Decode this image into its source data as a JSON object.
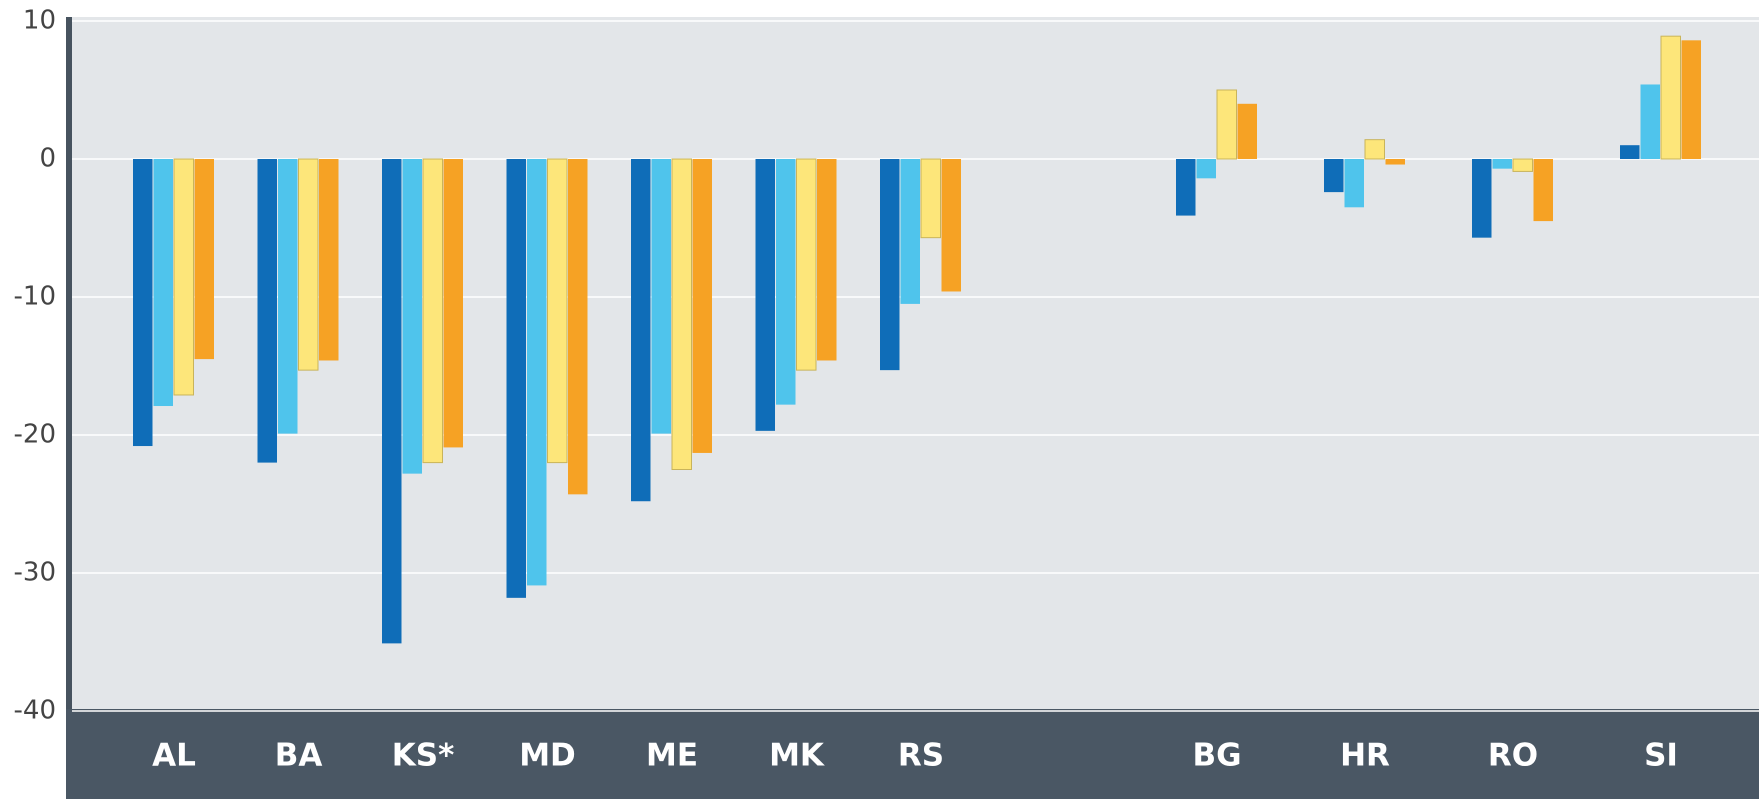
{
  "chart_data": {
    "type": "bar",
    "categories": [
      "AL",
      "BA",
      "KS*",
      "MD",
      "ME",
      "MK",
      "RS",
      null,
      "BG",
      "HR",
      "RO",
      "SI"
    ],
    "series": [
      {
        "color": "#0f6db8",
        "values": [
          -20.8,
          -22.0,
          -35.1,
          -31.8,
          -24.8,
          -19.7,
          -15.3,
          null,
          -4.1,
          -2.4,
          -5.7,
          1.0
        ]
      },
      {
        "color": "#4fc4ec",
        "values": [
          -17.9,
          -19.9,
          -22.8,
          -30.9,
          -19.9,
          -17.8,
          -10.5,
          null,
          -1.4,
          -3.5,
          -0.7,
          5.4
        ]
      },
      {
        "color": "#fde67a",
        "values": [
          -17.1,
          -15.3,
          -22.0,
          -22.0,
          -22.5,
          -15.3,
          -5.7,
          null,
          5.0,
          1.4,
          -0.9,
          8.9
        ]
      },
      {
        "color": "#f6a224",
        "values": [
          -14.5,
          -14.6,
          -20.9,
          -24.3,
          -21.3,
          -14.6,
          -9.6,
          null,
          4.0,
          -0.4,
          -4.5,
          8.6
        ]
      }
    ],
    "ylim": [
      -40,
      10
    ],
    "yticks": [
      -40,
      -30,
      -20,
      -10,
      0,
      10
    ],
    "grid": true
  }
}
